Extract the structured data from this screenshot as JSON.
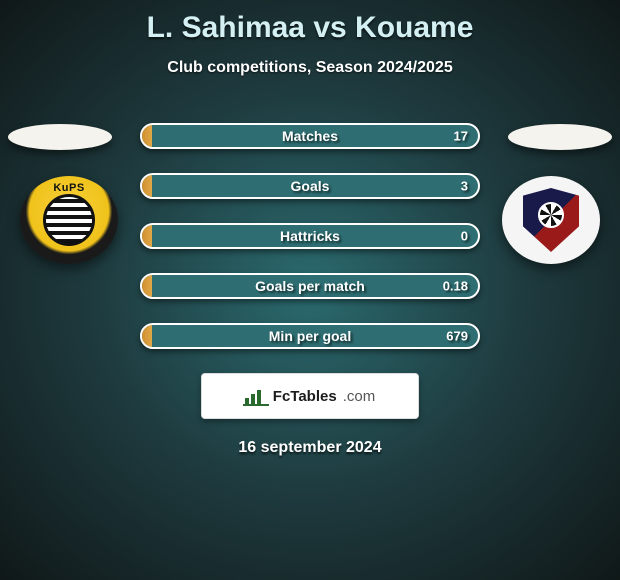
{
  "title": "L. Sahimaa vs Kouame",
  "subtitle": "Club competitions, Season 2024/2025",
  "date": "16 september 2024",
  "badge": {
    "t1": "FcTables",
    "t2": ".com"
  },
  "crest_left_text": "KuPS",
  "colors": {
    "fill_gradient_from": "#d18f2f",
    "fill_gradient_to": "#e0a848",
    "row_bg": "#2e6e72",
    "row_border": "#ffffff"
  },
  "rows": [
    {
      "label": "Matches",
      "left": "",
      "right": "17",
      "fill_pct": 3
    },
    {
      "label": "Goals",
      "left": "",
      "right": "3",
      "fill_pct": 3
    },
    {
      "label": "Hattricks",
      "left": "",
      "right": "0",
      "fill_pct": 3
    },
    {
      "label": "Goals per match",
      "left": "",
      "right": "0.18",
      "fill_pct": 3
    },
    {
      "label": "Min per goal",
      "left": "",
      "right": "679",
      "fill_pct": 3
    }
  ]
}
